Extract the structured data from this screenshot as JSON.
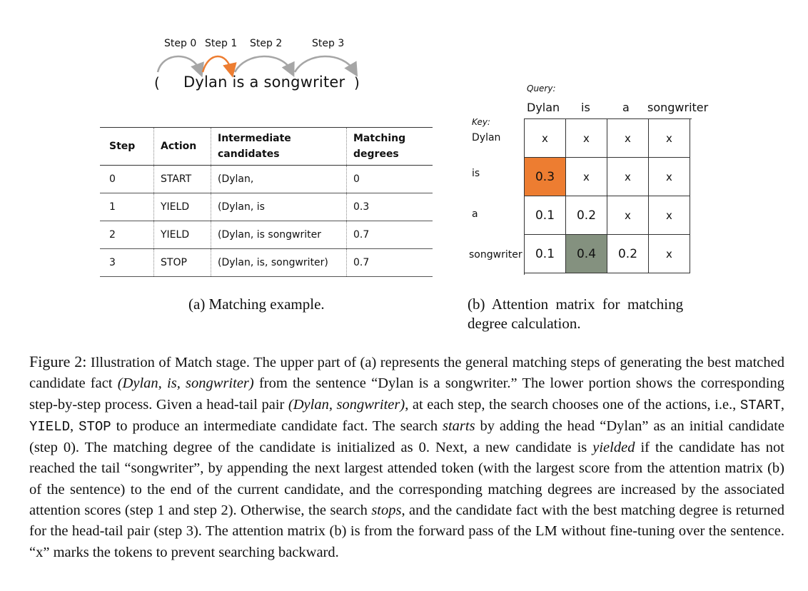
{
  "diagram": {
    "steps": [
      "Step 0",
      "Step 1",
      "Step 2",
      "Step 3"
    ],
    "open_paren": "(",
    "sentence": "Dylan is a songwriter",
    "close_paren": ")",
    "colors": {
      "arc_gray": "#a6a6a6",
      "arc_orange": "#ed7d31"
    }
  },
  "table": {
    "headers": [
      "Step",
      "Action",
      "Intermediate candidates",
      "Matching degrees"
    ],
    "header_lines": {
      "intermediate": [
        "Intermediate",
        "candidates"
      ],
      "matching": [
        "Matching",
        "degrees"
      ]
    },
    "rows": [
      [
        "0",
        "START",
        "(Dylan,",
        "0"
      ],
      [
        "1",
        "YIELD",
        "(Dylan, is",
        "0.3"
      ],
      [
        "2",
        "YIELD",
        "(Dylan, is songwriter",
        "0.7"
      ],
      [
        "3",
        "STOP",
        "(Dylan, is, songwriter)",
        "0.7"
      ]
    ]
  },
  "matrix": {
    "query_label": "Query:",
    "key_label": "Key:",
    "columns": [
      "Dylan",
      "is",
      "a",
      "songwriter"
    ],
    "rows": [
      "Dylan",
      "is",
      "a",
      "songwriter"
    ],
    "cells": [
      [
        "x",
        "x",
        "x",
        "x"
      ],
      [
        "0.3",
        "x",
        "x",
        "x"
      ],
      [
        "0.1",
        "0.2",
        "x",
        "x"
      ],
      [
        "0.1",
        "0.4",
        "0.2",
        "x"
      ]
    ],
    "highlights": {
      "orange": "#ed7d31",
      "gray": "#84917f"
    }
  },
  "captions": {
    "a": "(a) Matching example.",
    "b_line1": "(b)  Attention  matrix  for  matching",
    "b_line2": "degree calculation."
  },
  "figure_caption": {
    "label": "Figure 2:",
    "t1": " Illustration of Match stage. The upper part of (a) represents the general matching steps of generating the best matched candidate fact ",
    "i1": "(Dylan, is, songwriter)",
    "t2": " from the sentence “Dylan is a songwriter.” The lower portion shows the corresponding step-by-step process.  Given a head-tail pair ",
    "i2": "(Dylan, songwriter)",
    "t3": ", at each step, the search chooses one of the actions, i.e., ",
    "m1": "START",
    "t4": ", ",
    "m2": "YIELD",
    "t5": ", ",
    "m3": "STOP",
    "t6": " to produce an intermediate candidate fact.  The search ",
    "i3": "starts",
    "t7": " by adding the head “Dylan” as an initial candidate (step 0).  The matching degree of the candidate is initialized as 0.  Next, a new candidate is ",
    "i4": "yielded",
    "t8": " if the candidate has not reached the tail “songwriter”, by appending the next largest attended token (with the largest score from the attention matrix (b) of the sentence) to the end of the current candidate, and the corresponding matching degrees are increased by the associated attention scores (step 1 and step 2). Otherwise, the search ",
    "i5": "stops",
    "t9": ", and the candidate fact with the best matching degree is returned for the head-tail pair (step 3).  The attention matrix (b) is from the forward pass of the LM without fine-tuning over the sentence. “x” marks the tokens to prevent searching backward."
  }
}
